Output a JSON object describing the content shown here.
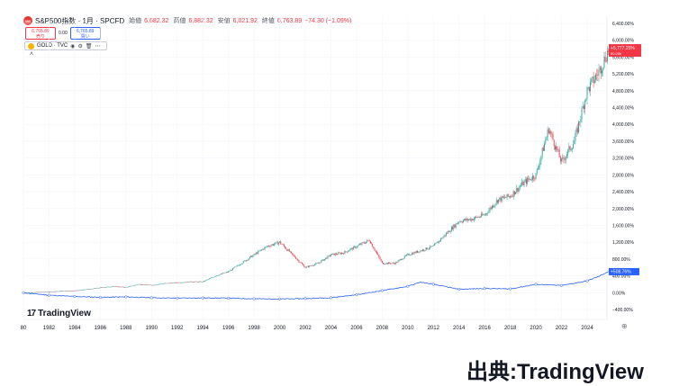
{
  "header": {
    "symbol": "S&P500指数 · 1月 · SPCFD",
    "logo_text": "500",
    "open_label": "始値",
    "open": "6,682.32",
    "high_label": "高値",
    "high": "6,882.32",
    "low_label": "安値",
    "low": "6,021.92",
    "close_label": "終値",
    "close": "6,763.89",
    "change": "−74.30 (−1.09%)"
  },
  "pricebox": {
    "sell_value": "6,765.89",
    "sell_label": "売り",
    "spread": "0.00",
    "buy_value": "6,765.89",
    "buy_label": "買い"
  },
  "compare": {
    "symbol": "GOLD · TVC"
  },
  "branding": {
    "tradingview": "TradingView",
    "logo_mark": "17"
  },
  "source_caption": "出典:TradingView",
  "colors": {
    "up": "#26a69a",
    "down": "#f23645",
    "gold_line": "#2962ff",
    "last_tag": "#f23645"
  },
  "chart_data": {
    "type": "line",
    "scale": "percent",
    "ylim": [
      -500,
      6500
    ],
    "yticks": [
      "6,400.00%",
      "6,000.00%",
      "5,600.00%",
      "5,200.00%",
      "4,800.00%",
      "4,400.00%",
      "4,000.00%",
      "3,600.00%",
      "3,200.00%",
      "2,800.00%",
      "2,400.00%",
      "2,000.00%",
      "1,600.00%",
      "1,200.00%",
      "800.00%",
      "400.00%",
      "0.00%",
      "−400.00%"
    ],
    "ytick_values": [
      6400,
      6000,
      5600,
      5200,
      4800,
      4400,
      4000,
      3600,
      3200,
      2800,
      2400,
      2000,
      1600,
      1200,
      800,
      400,
      0,
      -400
    ],
    "xticks": [
      "80",
      "1982",
      "1984",
      "1986",
      "1988",
      "1990",
      "1992",
      "1994",
      "1996",
      "1998",
      "2000",
      "2002",
      "2004",
      "2006",
      "2008",
      "2010",
      "2012",
      "2014",
      "2016",
      "2018",
      "2020",
      "2022",
      "2024"
    ],
    "xtick_values": [
      1980,
      1982,
      1984,
      1986,
      1988,
      1990,
      1992,
      1994,
      1996,
      1998,
      2000,
      2002,
      2004,
      2006,
      2008,
      2010,
      2012,
      2014,
      2016,
      2018,
      2020,
      2022,
      2024
    ],
    "xlim": [
      1980,
      2025.8
    ],
    "series": [
      {
        "name": "S&P500指数",
        "style": "candles",
        "last_label": "+5,777.25%",
        "last_label2": "00:20h",
        "x": [
          1980,
          1981,
          1982,
          1983,
          1984,
          1985,
          1986,
          1987,
          1988,
          1989,
          1990,
          1991,
          1992,
          1993,
          1994,
          1995,
          1996,
          1997,
          1998,
          1999,
          2000,
          2001,
          2002,
          2003,
          2004,
          2005,
          2006,
          2007,
          2008,
          2009,
          2010,
          2011,
          2012,
          2013,
          2014,
          2015,
          2016,
          2017,
          2018,
          2019,
          2020,
          2021,
          2022,
          2023,
          2024,
          2025,
          2025.7
        ],
        "values": [
          0,
          10,
          20,
          40,
          50,
          80,
          120,
          150,
          130,
          200,
          180,
          220,
          240,
          260,
          260,
          400,
          500,
          700,
          900,
          1100,
          1200,
          900,
          600,
          700,
          900,
          950,
          1100,
          1250,
          700,
          700,
          900,
          1000,
          1100,
          1400,
          1700,
          1750,
          1850,
          2200,
          2300,
          2600,
          2800,
          3900,
          3100,
          3600,
          4800,
          5300,
          5800
        ]
      },
      {
        "name": "GOLD",
        "style": "line",
        "last_label": "+508.76%",
        "x": [
          1980,
          1982,
          1984,
          1986,
          1988,
          1990,
          1992,
          1994,
          1996,
          1998,
          2000,
          2002,
          2004,
          2006,
          2008,
          2010,
          2011,
          2012,
          2014,
          2016,
          2018,
          2020,
          2022,
          2024,
          2025,
          2025.7
        ],
        "values": [
          0,
          -60,
          -90,
          -110,
          -100,
          -120,
          -130,
          -125,
          -130,
          -145,
          -150,
          -140,
          -120,
          -50,
          50,
          150,
          250,
          200,
          80,
          100,
          90,
          200,
          170,
          280,
          400,
          510
        ]
      }
    ]
  }
}
